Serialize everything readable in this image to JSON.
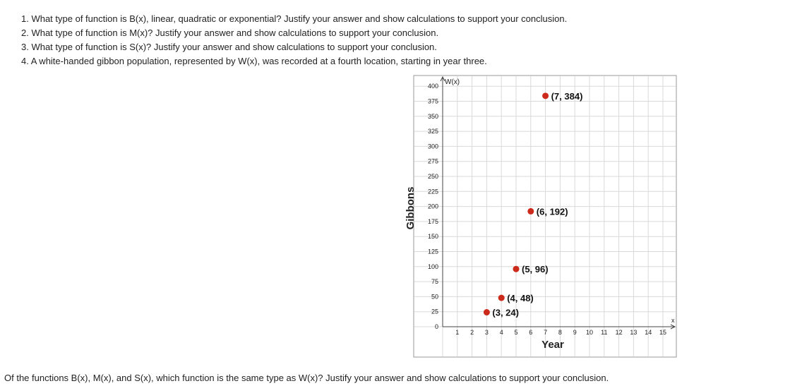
{
  "questions": [
    "1. What type of function is B(x), linear, quadratic or exponential? Justify your answer and show calculations to support your conclusion.",
    "2. What type of function is M(x)? Justify your answer and show calculations to support your conclusion.",
    "3. What type of function is S(x)? Justify your answer and show calculations to support your conclusion.",
    "4. A white-handed gibbon population, represented by W(x), was recorded at a fourth location, starting in year three."
  ],
  "bottom_question": "Of the functions B(x), M(x), and S(x), which function is the same type as W(x)? Justify your answer and show calculations to support your conclusion.",
  "chart_data": {
    "type": "scatter",
    "title": "",
    "xlabel": "Year",
    "ylabel": "Gibbons",
    "x_axis_name": "x",
    "y_axis_name": "W(x)",
    "xlim": [
      0,
      15
    ],
    "ylim": [
      0,
      400
    ],
    "xticks": [
      "1",
      "2",
      "3",
      "4",
      "5",
      "6",
      "7",
      "8",
      "9",
      "10",
      "11",
      "12",
      "13",
      "14",
      "15"
    ],
    "yticks": [
      "0",
      "25",
      "50",
      "75",
      "100",
      "125",
      "150",
      "175",
      "200",
      "225",
      "250",
      "275",
      "300",
      "325",
      "350",
      "375",
      "400"
    ],
    "grid": true,
    "points": [
      {
        "x": 3,
        "y": 24,
        "label": "(3, 24)"
      },
      {
        "x": 4,
        "y": 48,
        "label": "(4, 48)"
      },
      {
        "x": 5,
        "y": 96,
        "label": "(5, 96)"
      },
      {
        "x": 6,
        "y": 192,
        "label": "(6, 192)"
      },
      {
        "x": 7,
        "y": 384,
        "label": "(7, 384)"
      }
    ],
    "point_color": "#cc2a1a"
  }
}
